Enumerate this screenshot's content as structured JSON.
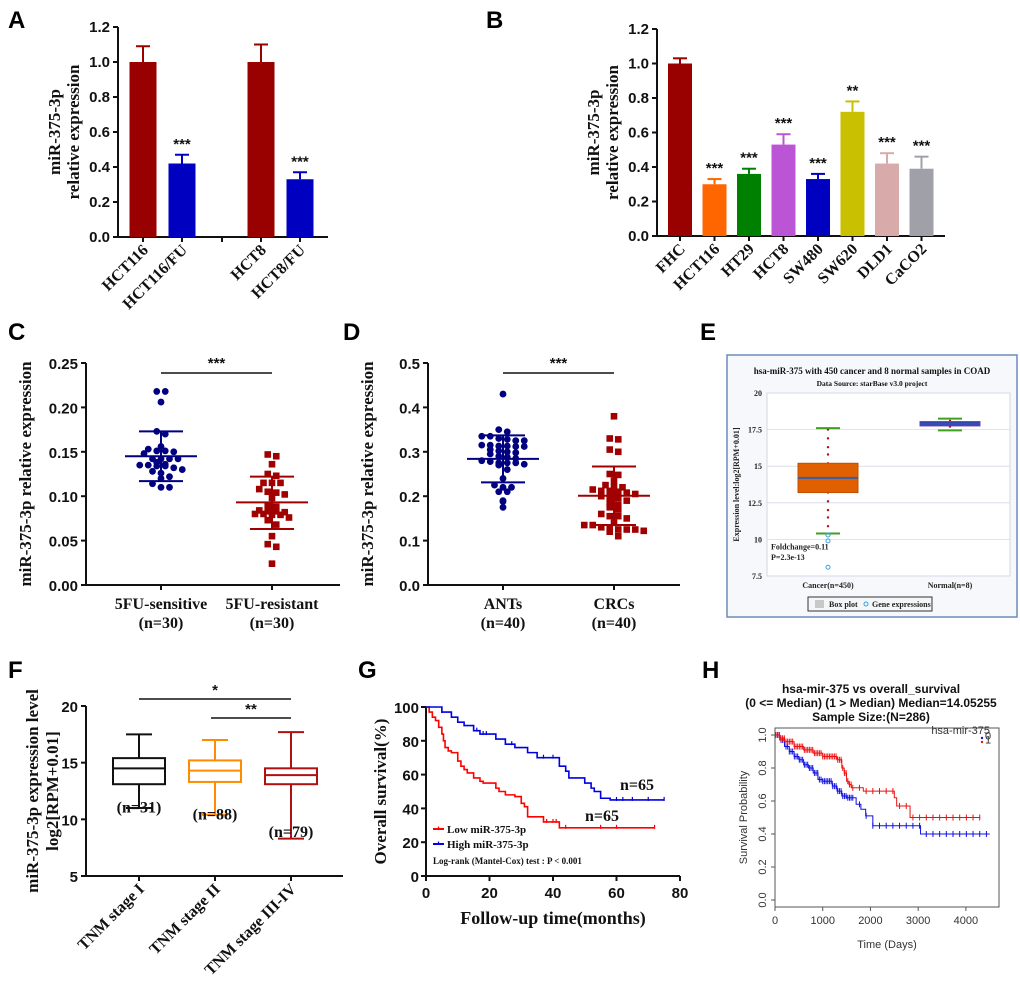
{
  "figure": {
    "panel_letters": [
      "A",
      "B",
      "C",
      "D",
      "E",
      "F",
      "G",
      "H"
    ]
  },
  "chart_data": [
    {
      "panel": "A",
      "type": "bar",
      "title": "",
      "xlabel": "",
      "ylabel": [
        "miR-375-3p",
        "relative expression"
      ],
      "ylim": [
        0,
        1.2
      ],
      "yticks": [
        "0.0",
        "0.2",
        "0.4",
        "0.6",
        "0.8",
        "1.0",
        "1.2"
      ],
      "categories": [
        "HCT116",
        "HCT116/FU",
        "HCT8",
        "HCT8/FU"
      ],
      "values": [
        1.0,
        0.42,
        1.0,
        0.33
      ],
      "errors": [
        0.09,
        0.05,
        0.1,
        0.04
      ],
      "colors": [
        "#990000",
        "#0000c0",
        "#990000",
        "#0000c0"
      ],
      "significance": [
        "",
        "***",
        "",
        "***"
      ]
    },
    {
      "panel": "B",
      "type": "bar",
      "title": "",
      "xlabel": "",
      "ylabel": [
        "miR-375-3p",
        "relative expression"
      ],
      "ylim": [
        0,
        1.2
      ],
      "yticks": [
        "0.0",
        "0.2",
        "0.4",
        "0.6",
        "0.8",
        "1.0",
        "1.2"
      ],
      "categories": [
        "FHC",
        "HCT116",
        "HT29",
        "HCT8",
        "SW480",
        "SW620",
        "DLD1",
        "CaCO2"
      ],
      "values": [
        1.0,
        0.3,
        0.36,
        0.53,
        0.33,
        0.72,
        0.42,
        0.39
      ],
      "errors": [
        0.03,
        0.03,
        0.03,
        0.06,
        0.03,
        0.06,
        0.06,
        0.07
      ],
      "colors": [
        "#990000",
        "#ff6600",
        "#008000",
        "#bb55d6",
        "#0000c0",
        "#c8c000",
        "#d9aaaa",
        "#a0a0a8"
      ],
      "significance": [
        "",
        "***",
        "***",
        "***",
        "***",
        "**",
        "***",
        "***"
      ]
    },
    {
      "panel": "C",
      "type": "scatter",
      "ylabel": "miR-375-3p relative expression",
      "ylim": [
        0,
        0.25
      ],
      "yticks": [
        "0.00",
        "0.05",
        "0.10",
        "0.15",
        "0.20",
        "0.25"
      ],
      "categories": [
        {
          "label": "5FU-sensitive",
          "n": "(n=30)"
        },
        {
          "label": "5FU-resistant",
          "n": "(n=30)"
        }
      ],
      "significance": "***",
      "series": [
        {
          "name": "5FU-sensitive",
          "color": "#000080",
          "marker": "circle",
          "mean": 0.145,
          "sd_low": 0.117,
          "sd_high": 0.173,
          "values": [
            0.218,
            0.218,
            0.206,
            0.173,
            0.17,
            0.156,
            0.153,
            0.151,
            0.151,
            0.15,
            0.148,
            0.142,
            0.142,
            0.142,
            0.142,
            0.138,
            0.136,
            0.135,
            0.135,
            0.134,
            0.134,
            0.132,
            0.13,
            0.128,
            0.126,
            0.122,
            0.12,
            0.114,
            0.11,
            0.11
          ]
        },
        {
          "name": "5FU-resistant",
          "color": "#a00000",
          "marker": "square",
          "mean": 0.093,
          "sd_low": 0.063,
          "sd_high": 0.122,
          "values": [
            0.147,
            0.145,
            0.136,
            0.125,
            0.123,
            0.115,
            0.115,
            0.115,
            0.108,
            0.105,
            0.104,
            0.102,
            0.098,
            0.09,
            0.088,
            0.084,
            0.083,
            0.083,
            0.082,
            0.08,
            0.08,
            0.079,
            0.079,
            0.076,
            0.073,
            0.068,
            0.055,
            0.046,
            0.043,
            0.024
          ]
        }
      ]
    },
    {
      "panel": "D",
      "type": "scatter",
      "ylabel": "miR-375-3p relative expression",
      "ylim": [
        0,
        0.5
      ],
      "yticks": [
        "0.0",
        "0.1",
        "0.2",
        "0.3",
        "0.4",
        "0.5"
      ],
      "categories": [
        {
          "label": "ANTs",
          "n": "(n=40)"
        },
        {
          "label": "CRCs",
          "n": "(n=40)"
        }
      ],
      "significance": "***",
      "series": [
        {
          "name": "ANTs",
          "color": "#000080",
          "marker": "circle",
          "mean": 0.284,
          "sd_low": 0.231,
          "sd_high": 0.337,
          "values": [
            0.43,
            0.35,
            0.345,
            0.335,
            0.335,
            0.33,
            0.328,
            0.325,
            0.325,
            0.315,
            0.315,
            0.313,
            0.313,
            0.312,
            0.312,
            0.305,
            0.302,
            0.3,
            0.298,
            0.295,
            0.29,
            0.288,
            0.285,
            0.28,
            0.278,
            0.275,
            0.275,
            0.275,
            0.272,
            0.27,
            0.26,
            0.24,
            0.225,
            0.22,
            0.22,
            0.21,
            0.21,
            0.19,
            0.188,
            0.175
          ]
        },
        {
          "name": "CRCs",
          "color": "#a00000",
          "marker": "square",
          "mean": 0.201,
          "sd_low": 0.135,
          "sd_high": 0.267,
          "values": [
            0.38,
            0.33,
            0.328,
            0.305,
            0.3,
            0.25,
            0.248,
            0.235,
            0.225,
            0.222,
            0.22,
            0.215,
            0.212,
            0.212,
            0.21,
            0.208,
            0.205,
            0.2,
            0.198,
            0.195,
            0.19,
            0.185,
            0.18,
            0.175,
            0.17,
            0.16,
            0.155,
            0.155,
            0.15,
            0.14,
            0.135,
            0.135,
            0.13,
            0.128,
            0.125,
            0.125,
            0.125,
            0.122,
            0.12,
            0.11
          ]
        }
      ]
    },
    {
      "panel": "E",
      "type": "box",
      "title": "hsa-miR-375 with 450 cancer and 8 normal samples in COAD",
      "subtitle": "Data Source:  starBase v3.0 project",
      "ylabel": "Expression level:log2[RPM+0.01]",
      "ylim": [
        7.5,
        20
      ],
      "yticks": [
        "7.5",
        "10",
        "12.5",
        "15",
        "17.5",
        "20"
      ],
      "grid": true,
      "categories": [
        "Cancer(n=450)",
        "Normal(n=8)"
      ],
      "boxes": [
        {
          "name": "Cancer(n=450)",
          "color": "#e06000",
          "median": 14.2,
          "q1": 13.2,
          "q3": 15.2,
          "whisker_low": 10.4,
          "whisker_high": 17.6,
          "dots": [
            17.5,
            16.9,
            16.3,
            15.8,
            15.2,
            13.2,
            12.6,
            12.0,
            11.5,
            10.9
          ],
          "outliers": [
            10.3,
            9.9,
            8.1
          ]
        },
        {
          "name": "Normal(n=8)",
          "color": "#3040a0",
          "median": 17.9,
          "q1": 17.75,
          "q3": 18.05,
          "whisker_low": 17.45,
          "whisker_high": 18.25,
          "dots": [
            18.1,
            17.7
          ],
          "outliers": []
        }
      ],
      "annotations": [
        "Foldchange=0.11",
        "P=2.3e-13"
      ],
      "legend": [
        "Box plot",
        "Gene expressions"
      ]
    },
    {
      "panel": "F",
      "type": "box",
      "ylabel": [
        "miR-375-3p  expression level",
        "log2[RPM+0.01]"
      ],
      "ylim": [
        5,
        20
      ],
      "yticks": [
        "5",
        "10",
        "15",
        "20"
      ],
      "categories": [
        "TNM stage I",
        "TNM stage II",
        "TNM stage III-IV"
      ],
      "boxes": [
        {
          "name": "TNM stage I",
          "n": "(n=31)",
          "color": "#111111",
          "min": 11.0,
          "q1": 13.1,
          "median": 14.5,
          "q3": 15.4,
          "max": 17.5
        },
        {
          "name": "TNM stage II",
          "n": "(n=88)",
          "color": "#ff8c00",
          "min": 10.4,
          "q1": 13.3,
          "median": 14.3,
          "q3": 15.2,
          "max": 17.0
        },
        {
          "name": "TNM stage III-IV",
          "n": "(n=79)",
          "color": "#b01010",
          "min": 8.3,
          "q1": 13.1,
          "median": 13.9,
          "q3": 14.5,
          "max": 17.7
        }
      ],
      "comparisons": [
        {
          "from": "TNM stage I",
          "to": "TNM stage III-IV",
          "label": "*"
        },
        {
          "from": "TNM stage II",
          "to": "TNM stage III-IV",
          "label": "**"
        }
      ]
    },
    {
      "panel": "G",
      "type": "line",
      "ylabel": "Overall survival(%)",
      "xlabel": "Follow-up time(months)",
      "xlim": [
        0,
        80
      ],
      "ylim": [
        0,
        100
      ],
      "xticks": [
        "0",
        "20",
        "40",
        "60",
        "80"
      ],
      "yticks": [
        "0",
        "20",
        "40",
        "60",
        "80",
        "100"
      ],
      "annotation": "Log-rank (Mantel-Cox) test : P < 0.001",
      "series": [
        {
          "name": "Low miR-375-3p",
          "color": "#ff0000",
          "n_label": "n=65",
          "x": [
            0,
            1,
            2,
            3,
            4,
            5,
            5.5,
            6,
            7,
            8,
            10,
            11,
            12,
            13,
            15,
            17,
            18,
            22,
            23,
            25,
            28,
            30,
            31,
            32,
            37,
            42,
            72
          ],
          "y": [
            100,
            97,
            94,
            92,
            88,
            84,
            80,
            76,
            74,
            73,
            68,
            65,
            63,
            61,
            58,
            56,
            55,
            52,
            50,
            48,
            47,
            43,
            41,
            35,
            32,
            28.5,
            28.5
          ],
          "censor_x": [
            38,
            40,
            41,
            44,
            55,
            60,
            72
          ]
        },
        {
          "name": "High miR-375-3p",
          "color": "#0000e0",
          "n_label": "n=65",
          "x": [
            0,
            5,
            8,
            10,
            12,
            15,
            17,
            22,
            25,
            28,
            32,
            35,
            42,
            44,
            45,
            47,
            50,
            52,
            53,
            55,
            58,
            75
          ],
          "y": [
            100,
            97,
            94,
            91,
            89,
            86,
            84,
            81,
            78,
            76,
            73,
            70,
            65,
            62,
            58,
            58,
            55,
            52,
            50,
            46,
            45,
            45
          ],
          "censor_x": [
            5,
            16,
            18,
            19,
            27,
            37,
            40,
            60,
            62,
            65,
            70,
            75
          ]
        }
      ]
    },
    {
      "panel": "H",
      "type": "line",
      "title": [
        "hsa-mir-375 vs overall_survival",
        "(0 <= Median) (1 > Median) Median=14.05255",
        "Sample Size:(N=286)"
      ],
      "xlabel": "Time (Days)",
      "ylabel": "Survival Probability",
      "xlim": [
        0,
        4600
      ],
      "ylim": [
        0,
        1.0
      ],
      "xticks": [
        "0",
        "1000",
        "2000",
        "3000",
        "4000"
      ],
      "yticks": [
        "0.0",
        "0.2",
        "0.4",
        "0.6",
        "0.8",
        "1.0"
      ],
      "legend_title": "hsa-mir-375",
      "legend": [
        "0",
        "1"
      ],
      "series": [
        {
          "name": "0",
          "color": "#1010e0",
          "x": [
            0,
            100,
            200,
            300,
            400,
            500,
            600,
            700,
            800,
            900,
            1000,
            1200,
            1300,
            1400,
            1500,
            1700,
            1800,
            1900,
            2050,
            3050,
            4500
          ],
          "y": [
            1.0,
            0.97,
            0.93,
            0.9,
            0.87,
            0.85,
            0.82,
            0.8,
            0.77,
            0.73,
            0.72,
            0.69,
            0.66,
            0.63,
            0.62,
            0.58,
            0.55,
            0.51,
            0.45,
            0.4,
            0.4
          ]
        },
        {
          "name": "1",
          "color": "#ee1010",
          "x": [
            0,
            100,
            200,
            400,
            600,
            800,
            1000,
            1300,
            1400,
            1450,
            1500,
            1550,
            1600,
            1700,
            1850,
            2500,
            2550,
            2800,
            2830,
            4300
          ],
          "y": [
            1.0,
            0.98,
            0.96,
            0.93,
            0.91,
            0.89,
            0.87,
            0.85,
            0.8,
            0.77,
            0.72,
            0.7,
            0.68,
            0.68,
            0.66,
            0.62,
            0.57,
            0.57,
            0.5,
            0.5
          ]
        }
      ]
    }
  ]
}
